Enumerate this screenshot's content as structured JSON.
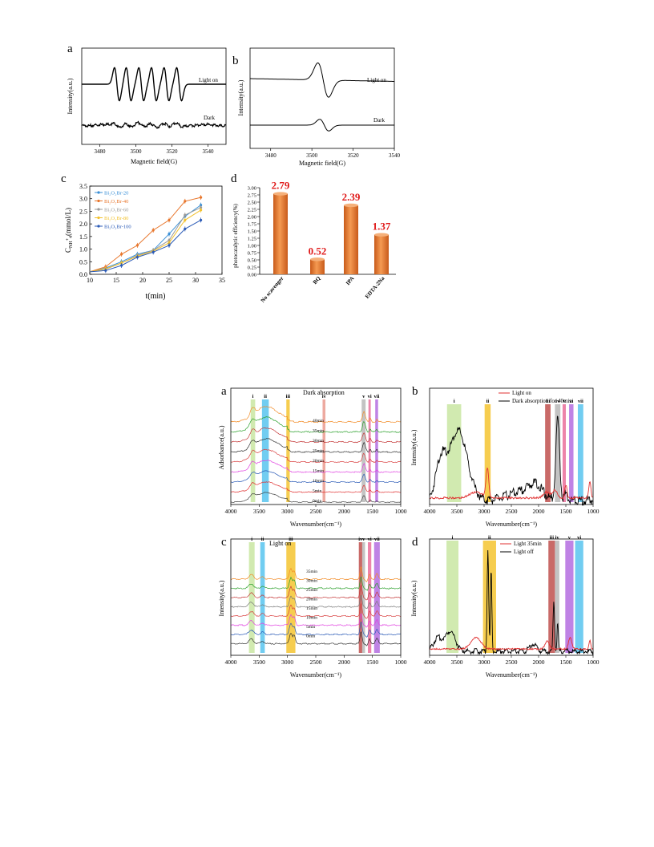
{
  "chart_data": [
    {
      "id": "fig1a",
      "panel_label": "a",
      "type": "line",
      "xlabel": "Magnetic field(G)",
      "ylabel": "Intensity(a.u.)",
      "xlim": [
        3470,
        3550
      ],
      "xticks": [
        3480,
        3500,
        3520,
        3540
      ],
      "series": [
        {
          "name": "Light on",
          "signal": "sextet EPR peaks"
        },
        {
          "name": "Dark",
          "signal": "weak noisy baseline"
        }
      ]
    },
    {
      "id": "fig1b",
      "panel_label": "b",
      "type": "line",
      "xlabel": "Magnetic field(G)",
      "ylabel": "Intensity(a.u.)",
      "xlim": [
        3470,
        3540
      ],
      "xticks": [
        3480,
        3500,
        3520,
        3540
      ],
      "series": [
        {
          "name": "Light on",
          "signal": "derivative signal at ~3505 G"
        },
        {
          "name": "Dark",
          "signal": "weak derivative signal at ~3505 G"
        }
      ]
    },
    {
      "id": "fig1c",
      "panel_label": "c",
      "type": "line",
      "xlabel": "t(min)",
      "ylabel": "C",
      "ylabel_sub": "NH",
      "ylabel_sup": "+",
      "ylabel_sub2": "4",
      "ylabel_unit": "(mmol/L)",
      "xlim": [
        10,
        35
      ],
      "ylim": [
        0,
        3.5
      ],
      "xticks": [
        10,
        15,
        20,
        25,
        30,
        35
      ],
      "yticks": [
        0.0,
        0.5,
        1.0,
        1.5,
        2.0,
        2.5,
        3.0,
        3.5
      ],
      "x": [
        13,
        16,
        19,
        22,
        25,
        28,
        31
      ],
      "series": [
        {
          "name": "Bi₂O₂Br-20",
          "color": "#3a8fd6",
          "values": [
            0.25,
            0.5,
            0.8,
            0.95,
            1.6,
            2.3,
            2.75
          ]
        },
        {
          "name": "Bi₂O₂Br-40",
          "color": "#e8762c",
          "values": [
            0.3,
            0.8,
            1.15,
            1.75,
            2.15,
            2.9,
            3.05
          ]
        },
        {
          "name": "Bi₂O₂Br-60",
          "color": "#9a9a9a",
          "values": [
            0.2,
            0.45,
            0.75,
            0.95,
            1.35,
            2.35,
            2.65
          ]
        },
        {
          "name": "Bi₂O₂Br-80",
          "color": "#f2c12e",
          "values": [
            0.22,
            0.45,
            0.72,
            0.92,
            1.25,
            2.15,
            2.55
          ]
        },
        {
          "name": "Bi₂O₂Br-100",
          "color": "#2b5bb7",
          "values": [
            0.15,
            0.35,
            0.68,
            0.88,
            1.15,
            1.8,
            2.15
          ]
        }
      ]
    },
    {
      "id": "fig1d",
      "panel_label": "d",
      "type": "bar",
      "ylabel": "photocatalytic efficiency(%)",
      "categories": [
        "No scavenger",
        "BQ",
        "IPA",
        "EDTA-2Na"
      ],
      "values": [
        2.79,
        0.52,
        2.39,
        1.37
      ],
      "value_labels": [
        "2.79",
        "0.52",
        "2.39",
        "1.37"
      ],
      "ylim": [
        0,
        3.0
      ],
      "yticks": [
        "0.00",
        "0.25",
        "0.50",
        "0.75",
        "1.00",
        "1.25",
        "1.50",
        "1.75",
        "2.00",
        "2.25",
        "2.50",
        "2.75",
        "3.00"
      ],
      "bar_color": "#e87a2e",
      "label_color": "#e01a1a"
    },
    {
      "id": "fig2a",
      "panel_label": "a",
      "type": "line",
      "annotation": "Dark absorption",
      "xlabel": "Wavenumber(cm⁻¹)",
      "ylabel": "Adsorbance(a.u.)",
      "xlim": [
        4000,
        1000
      ],
      "xticks": [
        4000,
        3500,
        3000,
        2500,
        2000,
        1500,
        1000
      ],
      "time_labels": [
        "40min",
        "35min",
        "30min",
        "25min",
        "20min",
        "15min",
        "10min",
        "5min",
        "0min"
      ],
      "bands": [
        {
          "label": "i",
          "from": 3650,
          "to": 3570,
          "color": "#c9e6a2"
        },
        {
          "label": "ii",
          "from": 3450,
          "to": 3330,
          "color": "#58c4ee"
        },
        {
          "label": "iii",
          "from": 3020,
          "to": 2960,
          "color": "#f4c430"
        },
        {
          "label": "iv",
          "from": 2380,
          "to": 2330,
          "color": "#ea9b8f"
        },
        {
          "label": "v",
          "from": 1690,
          "to": 1620,
          "color": "#b8b8b8"
        },
        {
          "label": "vi",
          "from": 1570,
          "to": 1530,
          "color": "#ea6f9a"
        },
        {
          "label": "vii",
          "from": 1450,
          "to": 1400,
          "color": "#b46de0"
        }
      ]
    },
    {
      "id": "fig2b",
      "panel_label": "b",
      "type": "line",
      "xlabel": "Wavenumber(cm⁻¹)",
      "ylabel": "Intensity(a.u.)",
      "xlim": [
        4000,
        1000
      ],
      "xticks": [
        4000,
        3500,
        3000,
        2500,
        2000,
        1500,
        1000
      ],
      "series": [
        {
          "name": "Light on",
          "color": "#e03030"
        },
        {
          "name": "Dark absorption for 40min",
          "color": "#000000"
        }
      ],
      "bands": [
        {
          "label": "i",
          "from": 3680,
          "to": 3420,
          "color": "#c9e6a2"
        },
        {
          "label": "ii",
          "from": 2990,
          "to": 2880,
          "color": "#f4c430"
        },
        {
          "label": "iii",
          "from": 1880,
          "to": 1780,
          "color": "#c0504d"
        },
        {
          "label": "iv",
          "from": 1700,
          "to": 1600,
          "color": "#b8b8b8"
        },
        {
          "label": "v",
          "from": 1560,
          "to": 1500,
          "color": "#ea6f9a"
        },
        {
          "label": "vi",
          "from": 1440,
          "to": 1360,
          "color": "#b46de0"
        },
        {
          "label": "vii",
          "from": 1280,
          "to": 1180,
          "color": "#58c4ee"
        }
      ]
    },
    {
      "id": "fig2c",
      "panel_label": "c",
      "type": "line",
      "annotation": "Light on",
      "xlabel": "Wavenumber(cm⁻¹)",
      "ylabel": "Intensity(a.u.)",
      "xlim": [
        4000,
        1000
      ],
      "xticks": [
        4000,
        3500,
        3000,
        2500,
        2000,
        1500,
        1000
      ],
      "time_labels": [
        "35min",
        "30min",
        "25min",
        "20min",
        "15min",
        "10min",
        "5min",
        "0min"
      ],
      "bands": [
        {
          "label": "i",
          "from": 3680,
          "to": 3580,
          "color": "#c9e6a2"
        },
        {
          "label": "ii",
          "from": 3480,
          "to": 3400,
          "color": "#58c4ee"
        },
        {
          "label": "iii",
          "from": 3020,
          "to": 2860,
          "color": "#f4c430"
        },
        {
          "label": "iv",
          "from": 1740,
          "to": 1680,
          "color": "#c0504d"
        },
        {
          "label": "v",
          "from": 1680,
          "to": 1630,
          "color": "#b8b8b8"
        },
        {
          "label": "vi",
          "from": 1580,
          "to": 1520,
          "color": "#ea6f9a"
        },
        {
          "label": "vii",
          "from": 1470,
          "to": 1370,
          "color": "#b46de0"
        }
      ]
    },
    {
      "id": "fig2d",
      "panel_label": "d",
      "type": "line",
      "xlabel": "Wavenumber(cm⁻¹)",
      "ylabel": "Intensity(a.u.)",
      "xlim": [
        4000,
        1000
      ],
      "xticks": [
        4000,
        3500,
        3000,
        2500,
        2000,
        1500,
        1000
      ],
      "series": [
        {
          "name": "Light 35min",
          "color": "#e03030"
        },
        {
          "name": "Light off",
          "color": "#000000"
        }
      ],
      "bands": [
        {
          "label": "i",
          "from": 3690,
          "to": 3470,
          "color": "#c9e6a2"
        },
        {
          "label": "ii",
          "from": 3020,
          "to": 2780,
          "color": "#f4c430"
        },
        {
          "label": "iii",
          "from": 1820,
          "to": 1700,
          "color": "#c0504d"
        },
        {
          "label": "iv",
          "from": 1700,
          "to": 1620,
          "color": "#b8b8b8"
        },
        {
          "label": "v",
          "from": 1510,
          "to": 1360,
          "color": "#b46de0"
        },
        {
          "label": "vi",
          "from": 1330,
          "to": 1180,
          "color": "#58c4ee"
        }
      ]
    }
  ]
}
